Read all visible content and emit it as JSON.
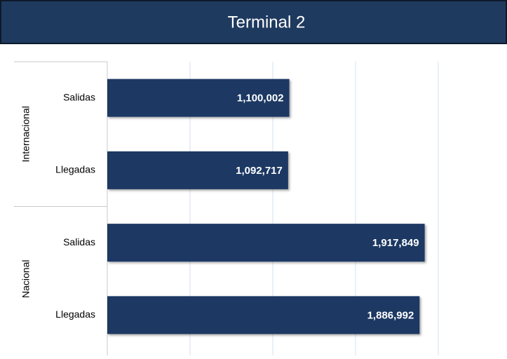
{
  "chart_data": {
    "type": "bar",
    "orientation": "horizontal",
    "title": "Terminal 2",
    "groups": [
      {
        "name": "Internacional",
        "categories": [
          "Salidas",
          "Llegadas"
        ]
      },
      {
        "name": "Nacional",
        "categories": [
          "Salidas",
          "Llegadas"
        ]
      }
    ],
    "values": [
      1100002,
      1092717,
      1917849,
      1886992
    ],
    "value_labels": [
      "1,100,002",
      "1,092,717",
      "1,917,849",
      "1,886,992"
    ],
    "color": "#1f3864",
    "title_background": "#1f3a5f",
    "xlim": [
      0,
      2000000
    ],
    "xticks": [
      0,
      500000,
      1000000,
      1500000,
      2000000
    ],
    "grid": true
  }
}
